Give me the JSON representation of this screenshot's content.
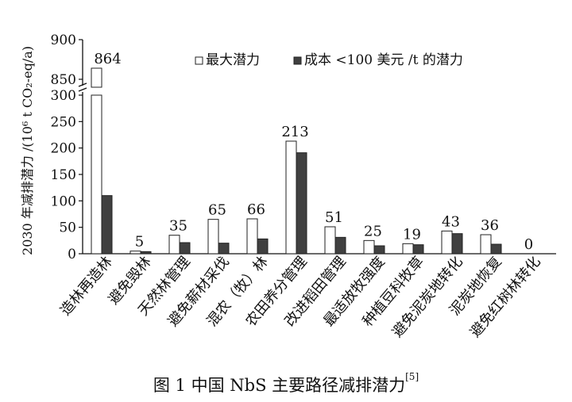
{
  "chart_data": {
    "type": "bar",
    "ylabel": "2030 年减排潜力 /(10⁶ t CO₂-eq/a)",
    "categories": [
      "造林再造林",
      "避免毁林",
      "天然林管理",
      "避免薪材采伐",
      "混农（牧）林",
      "农田养分管理",
      "改进稻田管理",
      "最适放牧强度",
      "种植豆科牧草",
      "避免泥炭地转化",
      "泥炭地恢复",
      "避免红树林转化"
    ],
    "series": [
      {
        "name": "最大潜力",
        "color": "#ffffff",
        "values": [
          864,
          5,
          35,
          65,
          66,
          213,
          51,
          25,
          19,
          43,
          36,
          0
        ]
      },
      {
        "name": "成本 <100 美元 /t 的潜力",
        "color": "#404040",
        "values": [
          110,
          4,
          21,
          20,
          28,
          191,
          31,
          15,
          17,
          38,
          18,
          0
        ]
      }
    ],
    "data_labels": [
      "864",
      "5",
      "35",
      "65",
      "66",
      "213",
      "51",
      "25",
      "19",
      "43",
      "36",
      "0"
    ],
    "y_ticks_lower": [
      0,
      50,
      100,
      150,
      200,
      250,
      300
    ],
    "y_ticks_upper": [
      850,
      900
    ],
    "ylim_lower": [
      0,
      300
    ],
    "ylim_upper": [
      840,
      900
    ],
    "axis_break": true,
    "legend_position": "top-right",
    "grid": false
  },
  "caption": {
    "text": "图 1  中国 NbS 主要路径减排潜力",
    "ref": "[5]"
  }
}
